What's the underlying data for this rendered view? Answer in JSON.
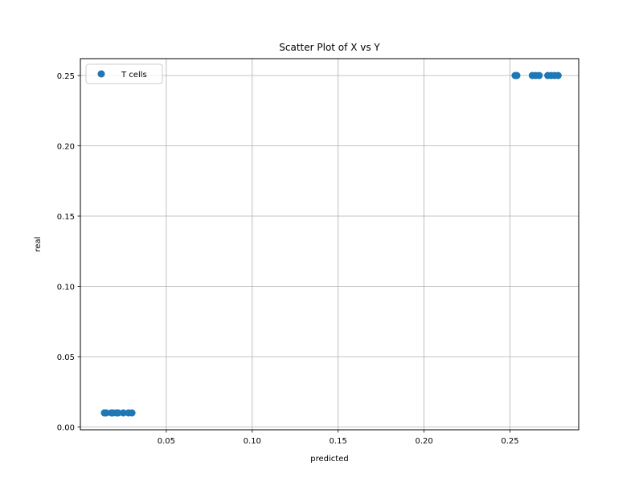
{
  "chart_data": {
    "type": "scatter",
    "title": "Scatter Plot of X vs Y",
    "xlabel": "predicted",
    "ylabel": "real",
    "xlim": [
      0.0,
      0.29
    ],
    "ylim": [
      -0.002,
      0.262
    ],
    "xticks": [
      0.05,
      0.1,
      0.15,
      0.2,
      0.25
    ],
    "xtick_labels": [
      "0.05",
      "0.10",
      "0.15",
      "0.20",
      "0.25"
    ],
    "yticks": [
      0.0,
      0.05,
      0.1,
      0.15,
      0.2,
      0.25
    ],
    "ytick_labels": [
      "0.00",
      "0.05",
      "0.10",
      "0.15",
      "0.20",
      "0.25"
    ],
    "grid": true,
    "legend_position": "top-left",
    "series": [
      {
        "name": "T cells",
        "color": "#1f77b4",
        "points": [
          {
            "x": 0.014,
            "y": 0.01
          },
          {
            "x": 0.015,
            "y": 0.01
          },
          {
            "x": 0.018,
            "y": 0.01
          },
          {
            "x": 0.019,
            "y": 0.01
          },
          {
            "x": 0.021,
            "y": 0.01
          },
          {
            "x": 0.022,
            "y": 0.01
          },
          {
            "x": 0.025,
            "y": 0.01
          },
          {
            "x": 0.028,
            "y": 0.01
          },
          {
            "x": 0.03,
            "y": 0.01
          },
          {
            "x": 0.253,
            "y": 0.25
          },
          {
            "x": 0.254,
            "y": 0.25
          },
          {
            "x": 0.263,
            "y": 0.25
          },
          {
            "x": 0.265,
            "y": 0.25
          },
          {
            "x": 0.267,
            "y": 0.25
          },
          {
            "x": 0.272,
            "y": 0.25
          },
          {
            "x": 0.274,
            "y": 0.25
          },
          {
            "x": 0.276,
            "y": 0.25
          },
          {
            "x": 0.278,
            "y": 0.25
          }
        ]
      }
    ]
  }
}
